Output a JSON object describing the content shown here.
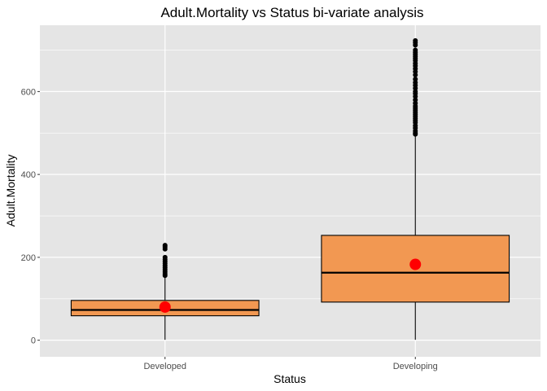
{
  "chart_data": {
    "type": "box",
    "title": "Adult.Mortality vs Status bi-variate analysis",
    "xlabel": "Status",
    "ylabel": "Adult.Mortality",
    "categories": [
      "Developed",
      "Developing"
    ],
    "ylim": [
      -40,
      760
    ],
    "yticks": [
      0,
      200,
      400,
      600
    ],
    "boxes": [
      {
        "name": "Developed",
        "min": 1,
        "q1": 59,
        "median": 73,
        "q3": 96,
        "max": 152,
        "mean": 80,
        "outliers": [
          156,
          160,
          165,
          170,
          175,
          180,
          185,
          190,
          195,
          200,
          220,
          225,
          229
        ]
      },
      {
        "name": "Developing",
        "min": 1,
        "q1": 92,
        "median": 163,
        "q3": 253,
        "max": 494,
        "mean": 183,
        "outliers": [
          497,
          500,
          505,
          512,
          518,
          525,
          530,
          535,
          540,
          545,
          550,
          555,
          560,
          565,
          572,
          580,
          588,
          595,
          600,
          608,
          615,
          622,
          630,
          640,
          648,
          655,
          662,
          668,
          675,
          680,
          685,
          690,
          695,
          700,
          712,
          718,
          723
        ]
      }
    ],
    "fill_color": "#f29852",
    "mean_color": "#ff0000",
    "panel_color": "#e5e5e5",
    "grid_color": "#ffffff",
    "grid": true,
    "legend": "none"
  }
}
